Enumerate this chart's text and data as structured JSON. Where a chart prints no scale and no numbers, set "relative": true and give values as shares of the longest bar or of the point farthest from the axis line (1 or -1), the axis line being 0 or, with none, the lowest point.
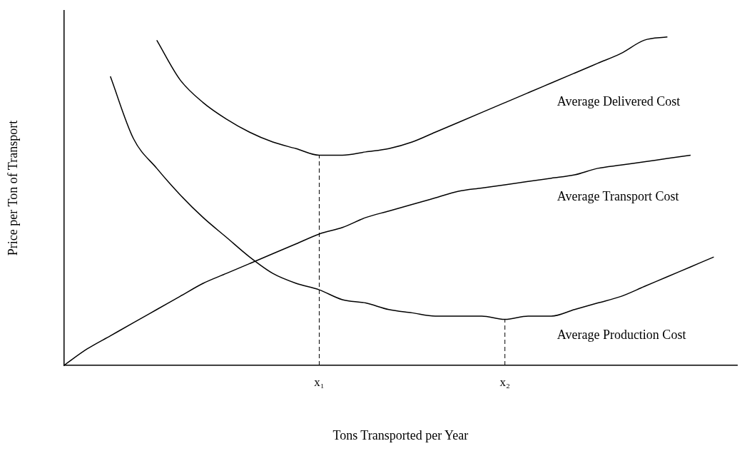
{
  "chart_data": {
    "type": "line",
    "relative": true,
    "xlabel": "Tons Transported per Year",
    "ylabel": "Price per Ton of Transport",
    "grid": false,
    "legend": false,
    "marker": "none",
    "line_style": "solid",
    "categories": [
      null,
      null,
      null,
      null,
      null,
      null,
      null,
      null,
      null,
      null,
      null,
      "x₁",
      null,
      null,
      null,
      null,
      null,
      null,
      null,
      "x₂",
      null,
      null,
      null,
      null,
      null,
      null,
      null,
      null,
      null,
      null
    ],
    "series": [
      {
        "name": "Average Delivered Cost",
        "color": "#000000",
        "values": [
          null,
          null,
          null,
          null,
          0.99,
          0.87,
          0.8,
          0.75,
          0.71,
          0.68,
          0.66,
          0.64,
          0.64,
          0.65,
          0.66,
          0.68,
          0.71,
          0.74,
          0.77,
          0.8,
          0.83,
          0.86,
          0.89,
          0.92,
          0.95,
          0.99,
          1,
          null,
          null,
          null
        ]
      },
      {
        "name": "Average Transport Cost",
        "color": "#000000",
        "values": [
          0,
          0.05,
          0.09,
          0.13,
          0.17,
          0.21,
          0.25,
          0.28,
          0.31,
          0.34,
          0.37,
          0.4,
          0.42,
          0.45,
          0.47,
          0.49,
          0.51,
          0.53,
          0.54,
          0.55,
          0.56,
          0.57,
          0.58,
          0.6,
          0.61,
          0.62,
          0.63,
          0.64,
          null,
          null
        ]
      },
      {
        "name": "Average Production Cost",
        "color": "#000000",
        "values": [
          null,
          null,
          0.88,
          0.69,
          0.6,
          0.52,
          0.45,
          0.39,
          0.33,
          0.28,
          0.25,
          0.23,
          0.2,
          0.19,
          0.17,
          0.16,
          0.15,
          0.15,
          0.15,
          0.14,
          0.15,
          0.15,
          0.17,
          0.19,
          0.21,
          0.24,
          0.27,
          0.3,
          0.33,
          null
        ]
      }
    ],
    "ref_lines": [
      {
        "axis": "x",
        "value": "x₁",
        "line_style": "dashed"
      },
      {
        "axis": "x",
        "value": "x₂",
        "line_style": "dashed"
      }
    ]
  }
}
